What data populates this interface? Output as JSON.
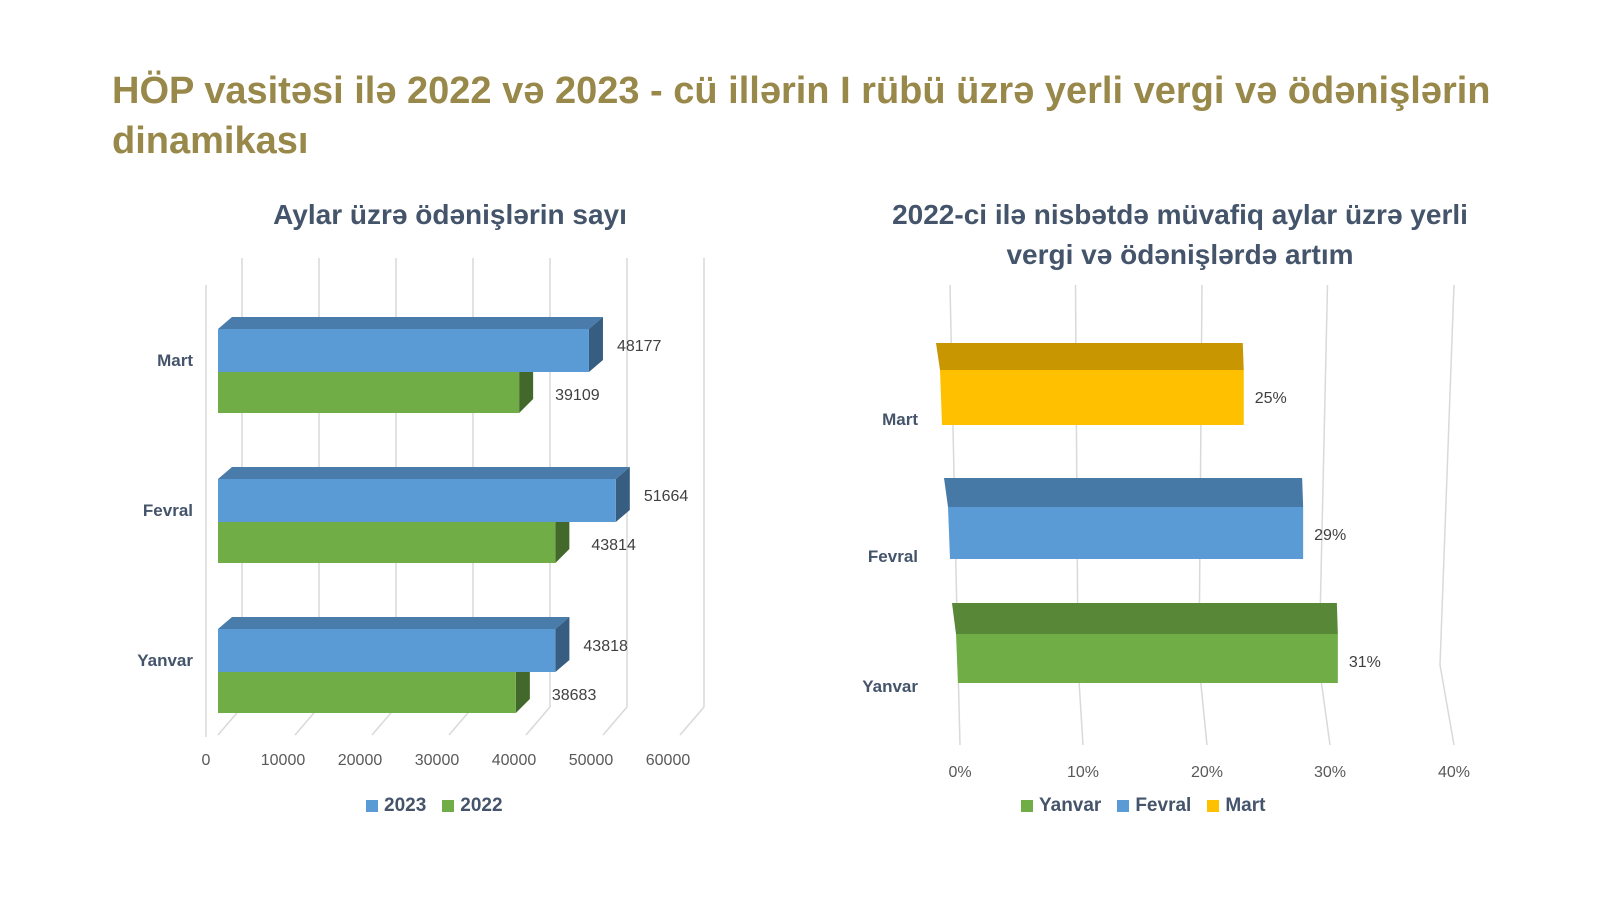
{
  "page": {
    "title": "HÖP vasitəsi ilə 2022 və 2023 - cü illərin I rübü üzrə yerli vergi və ödənişlərin dinamikası"
  },
  "colors": {
    "title": "#98884A",
    "chart_title": "#44546A",
    "blue": "#5B9BD5",
    "green": "#70AD47",
    "gold": "#FFC000"
  },
  "chart_data": [
    {
      "type": "bar",
      "orientation": "horizontal",
      "style": "3d",
      "title": "Aylar üzrə ödənişlərin sayı",
      "categories": [
        "Mart",
        "Fevral",
        "Yanvar"
      ],
      "series": [
        {
          "name": "2023",
          "values": [
            48177,
            51664,
            43818
          ],
          "color": "#5B9BD5"
        },
        {
          "name": "2022",
          "values": [
            39109,
            43814,
            38683
          ],
          "color": "#70AD47"
        }
      ],
      "value_labels": [
        [
          "48177",
          "51664",
          "43818"
        ],
        [
          "39109",
          "43814",
          "38683"
        ]
      ],
      "xlim": [
        0,
        60000
      ],
      "xticks": [
        "0",
        "10000",
        "20000",
        "30000",
        "40000",
        "50000",
        "60000"
      ],
      "grid": true,
      "legend_position": "bottom",
      "legend": [
        "2023",
        "2022"
      ]
    },
    {
      "type": "bar",
      "orientation": "horizontal",
      "style": "3d",
      "title": "2022-ci ilə nisbətdə müvafiq aylar üzrə yerli vergi və ödənişlərdə artım",
      "categories": [
        "Mart",
        "Fevral",
        "Yanvar"
      ],
      "values": [
        25,
        29,
        31
      ],
      "unit": "%",
      "bar_colors": [
        "#FFC000",
        "#5B9BD5",
        "#70AD47"
      ],
      "value_labels": [
        "25%",
        "29%",
        "31%"
      ],
      "xlim": [
        0,
        40
      ],
      "xticks": [
        "0%",
        "10%",
        "20%",
        "30%",
        "40%"
      ],
      "grid": true,
      "legend_position": "bottom",
      "legend": [
        {
          "name": "Yanvar",
          "color": "#70AD47"
        },
        {
          "name": "Fevral",
          "color": "#5B9BD5"
        },
        {
          "name": "Mart",
          "color": "#FFC000"
        }
      ]
    }
  ]
}
